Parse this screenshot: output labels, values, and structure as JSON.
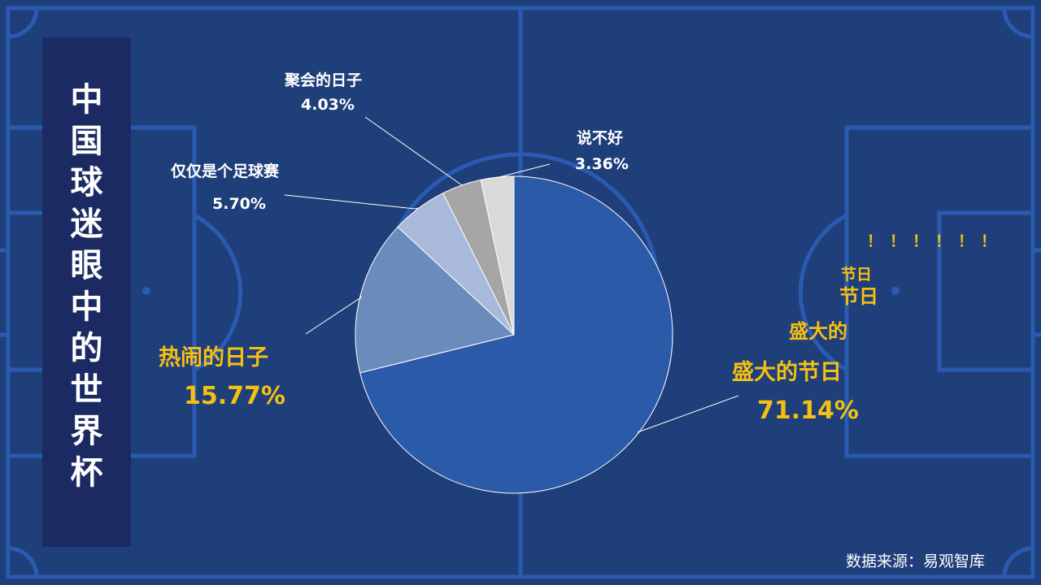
{
  "slide": {
    "title": "中国球迷眼中的世界杯",
    "source": "数据来源：易观智库",
    "decor": {
      "exclamations": "！！！！！！",
      "small_1": "节日",
      "small_2": "节日",
      "small_3": "盛大的"
    }
  },
  "colors": {
    "background": "#1f3f7a",
    "field_lines": "#2a5bb0",
    "title_panel": "#1b2a63",
    "highlight_text": "#f5c012"
  },
  "chart_data": {
    "type": "pie",
    "title": "",
    "start_angle_deg": 0,
    "direction": "clockwise",
    "slices": [
      {
        "label": "盛大的节日",
        "value": 71.14,
        "pct_label": "71.14%",
        "color": "#2b5aa8"
      },
      {
        "label": "热闹的日子",
        "value": 15.77,
        "pct_label": "15.77%",
        "color": "#6b8bbd"
      },
      {
        "label": "仅仅是个足球赛",
        "value": 5.7,
        "pct_label": "5.70%",
        "color": "#a8b9d9"
      },
      {
        "label": "聚会的日子",
        "value": 4.03,
        "pct_label": "4.03%",
        "color": "#a6a6a6"
      },
      {
        "label": "说不好",
        "value": 3.36,
        "pct_label": "3.36%",
        "color": "#d9d9d9"
      }
    ]
  }
}
